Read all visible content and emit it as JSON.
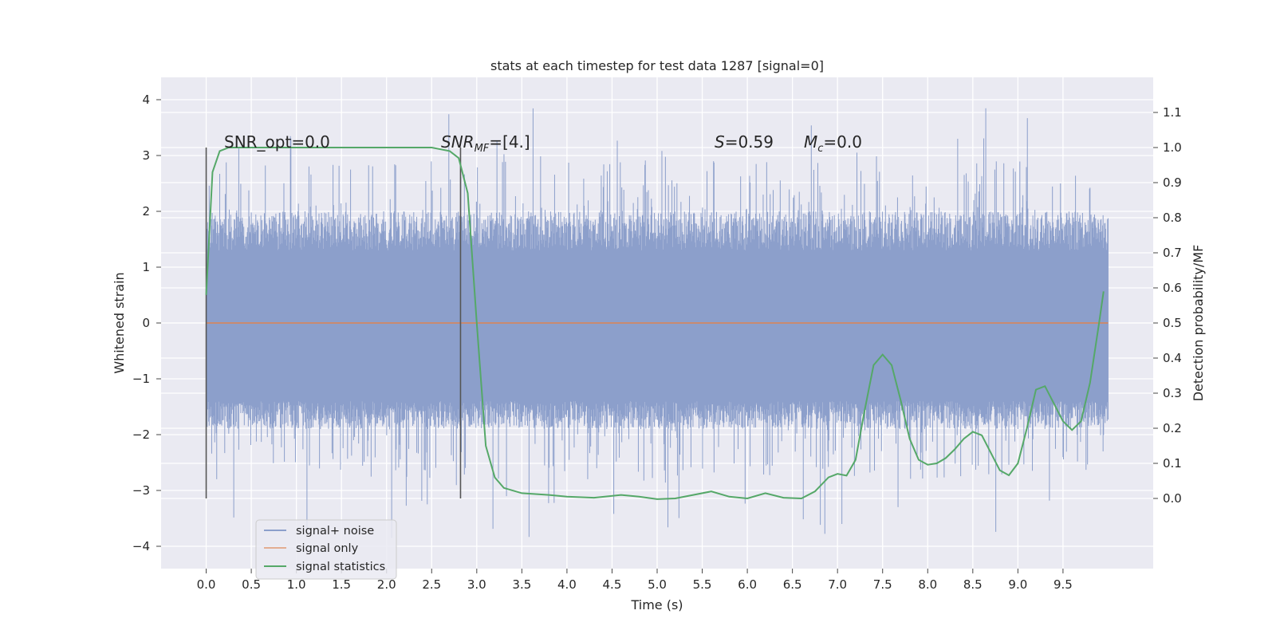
{
  "chart_data": {
    "type": "line",
    "title": "stats at each timestep for test data 1287 [signal=0]",
    "xlabel": "Time (s)",
    "ylabel_left": "Whitened strain",
    "ylabel_right": "Detection probability/MF",
    "xlim": [
      -0.5,
      10.5
    ],
    "ylim_left": [
      -4.4,
      4.4
    ],
    "ylim_right": [
      -0.2,
      1.2
    ],
    "x_ticks": [
      "0.0",
      "0.5",
      "1.0",
      "1.5",
      "2.0",
      "2.5",
      "3.0",
      "3.5",
      "4.0",
      "4.5",
      "5.0",
      "5.5",
      "6.0",
      "6.5",
      "7.0",
      "7.5",
      "8.0",
      "8.5",
      "9.0",
      "9.5"
    ],
    "y_ticks_left": [
      "4",
      "3",
      "2",
      "1",
      "0",
      "−1",
      "−2",
      "−3",
      "−4"
    ],
    "y_ticks_right": [
      "1.1",
      "1.0",
      "0.9",
      "0.8",
      "0.7",
      "0.6",
      "0.5",
      "0.4",
      "0.3",
      "0.2",
      "0.1",
      "0.0"
    ],
    "grid": true,
    "legend_position": "lower-left",
    "colors": {
      "signal_noise": "#8c9fcb",
      "signal_only": "#dd8452",
      "signal_statistics": "#55a868",
      "background": "#eaeaf2",
      "vline": "#555555"
    },
    "annotations": {
      "snr_opt": "SNR_opt=0.0",
      "snr_mf_main": "SNR",
      "snr_mf_sub": "MF",
      "snr_mf_rest": "=[4.]",
      "s_italic": "S",
      "s_rest": "=0.59",
      "mc_italic": "M",
      "mc_sub": "c",
      "mc_rest": "=0.0"
    },
    "vertical_markers_x": [
      0.0,
      2.82
    ],
    "series": [
      {
        "name": "signal+ noise",
        "axis": "left",
        "x_range": [
          0.0,
          10.0
        ],
        "envelope_typical": [
          -1.9,
          2.0
        ],
        "max": 4.05,
        "min": -3.85
      },
      {
        "name": "signal only",
        "axis": "left",
        "x": [
          0.0,
          10.0
        ],
        "y": [
          0.0,
          0.0
        ]
      },
      {
        "name": "signal statistics",
        "axis": "right",
        "x": [
          0.0,
          0.07,
          0.15,
          0.25,
          0.5,
          1.0,
          1.5,
          2.0,
          2.5,
          2.7,
          2.8,
          2.9,
          3.0,
          3.1,
          3.2,
          3.3,
          3.5,
          3.8,
          4.0,
          4.3,
          4.6,
          4.8,
          5.0,
          5.2,
          5.4,
          5.6,
          5.8,
          6.0,
          6.2,
          6.4,
          6.6,
          6.75,
          6.9,
          7.0,
          7.1,
          7.2,
          7.3,
          7.4,
          7.5,
          7.6,
          7.7,
          7.8,
          7.9,
          8.0,
          8.1,
          8.2,
          8.3,
          8.4,
          8.5,
          8.6,
          8.7,
          8.8,
          8.9,
          9.0,
          9.1,
          9.2,
          9.3,
          9.4,
          9.5,
          9.6,
          9.7,
          9.8,
          9.9,
          9.95
        ],
        "y": [
          0.58,
          0.93,
          0.99,
          1.0,
          1.0,
          1.0,
          1.0,
          1.0,
          1.0,
          0.99,
          0.97,
          0.87,
          0.5,
          0.15,
          0.06,
          0.03,
          0.015,
          0.01,
          0.005,
          0.002,
          0.01,
          0.005,
          -0.002,
          0.0,
          0.01,
          0.02,
          0.005,
          0.0,
          0.015,
          0.002,
          0.0,
          0.02,
          0.06,
          0.07,
          0.065,
          0.11,
          0.25,
          0.38,
          0.41,
          0.38,
          0.28,
          0.17,
          0.11,
          0.096,
          0.1,
          0.115,
          0.14,
          0.17,
          0.19,
          0.18,
          0.13,
          0.08,
          0.066,
          0.1,
          0.2,
          0.31,
          0.32,
          0.27,
          0.22,
          0.195,
          0.22,
          0.33,
          0.5,
          0.59
        ]
      }
    ]
  }
}
